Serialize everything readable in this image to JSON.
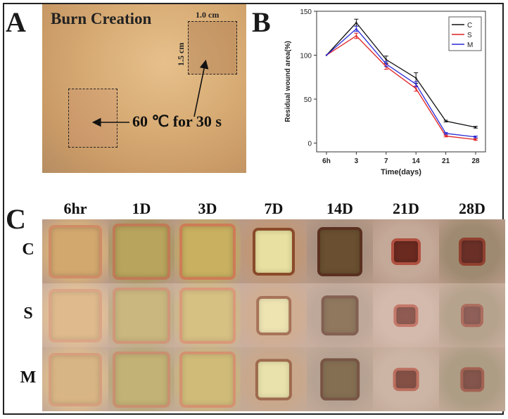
{
  "panel_a": {
    "letter": "A",
    "title": "Burn Creation",
    "width_label": "1.0 cm",
    "height_label": "1.5 cm",
    "condition_label": "60 ℃ for 30 s"
  },
  "panel_b": {
    "letter": "B"
  },
  "panel_c": {
    "letter": "C",
    "columns": [
      "6hr",
      "1D",
      "3D",
      "7D",
      "14D",
      "21D",
      "28D"
    ],
    "rows": [
      "C",
      "S",
      "M"
    ]
  },
  "chart_data": {
    "type": "line",
    "title": "",
    "xlabel": "Time(days)",
    "ylabel": "Residual wound area(%)",
    "categories": [
      "6h",
      "3",
      "7",
      "14",
      "21",
      "28"
    ],
    "yticks": [
      0,
      50,
      100,
      150
    ],
    "ylim": [
      -10,
      150
    ],
    "legend_position": "top-right",
    "grid": false,
    "series": [
      {
        "name": "C",
        "color": "#111111",
        "values": [
          100,
          137,
          95,
          74,
          25,
          18
        ],
        "errors": [
          0,
          4,
          4,
          6,
          1,
          1
        ]
      },
      {
        "name": "S",
        "color": "#e02020",
        "values": [
          100,
          122,
          87,
          62,
          8,
          4
        ],
        "errors": [
          0,
          3,
          3,
          3,
          1,
          1
        ]
      },
      {
        "name": "M",
        "color": "#2a2ad6",
        "values": [
          100,
          130,
          90,
          67,
          11,
          7
        ],
        "errors": [
          0,
          3,
          3,
          3,
          1,
          1
        ]
      }
    ]
  }
}
